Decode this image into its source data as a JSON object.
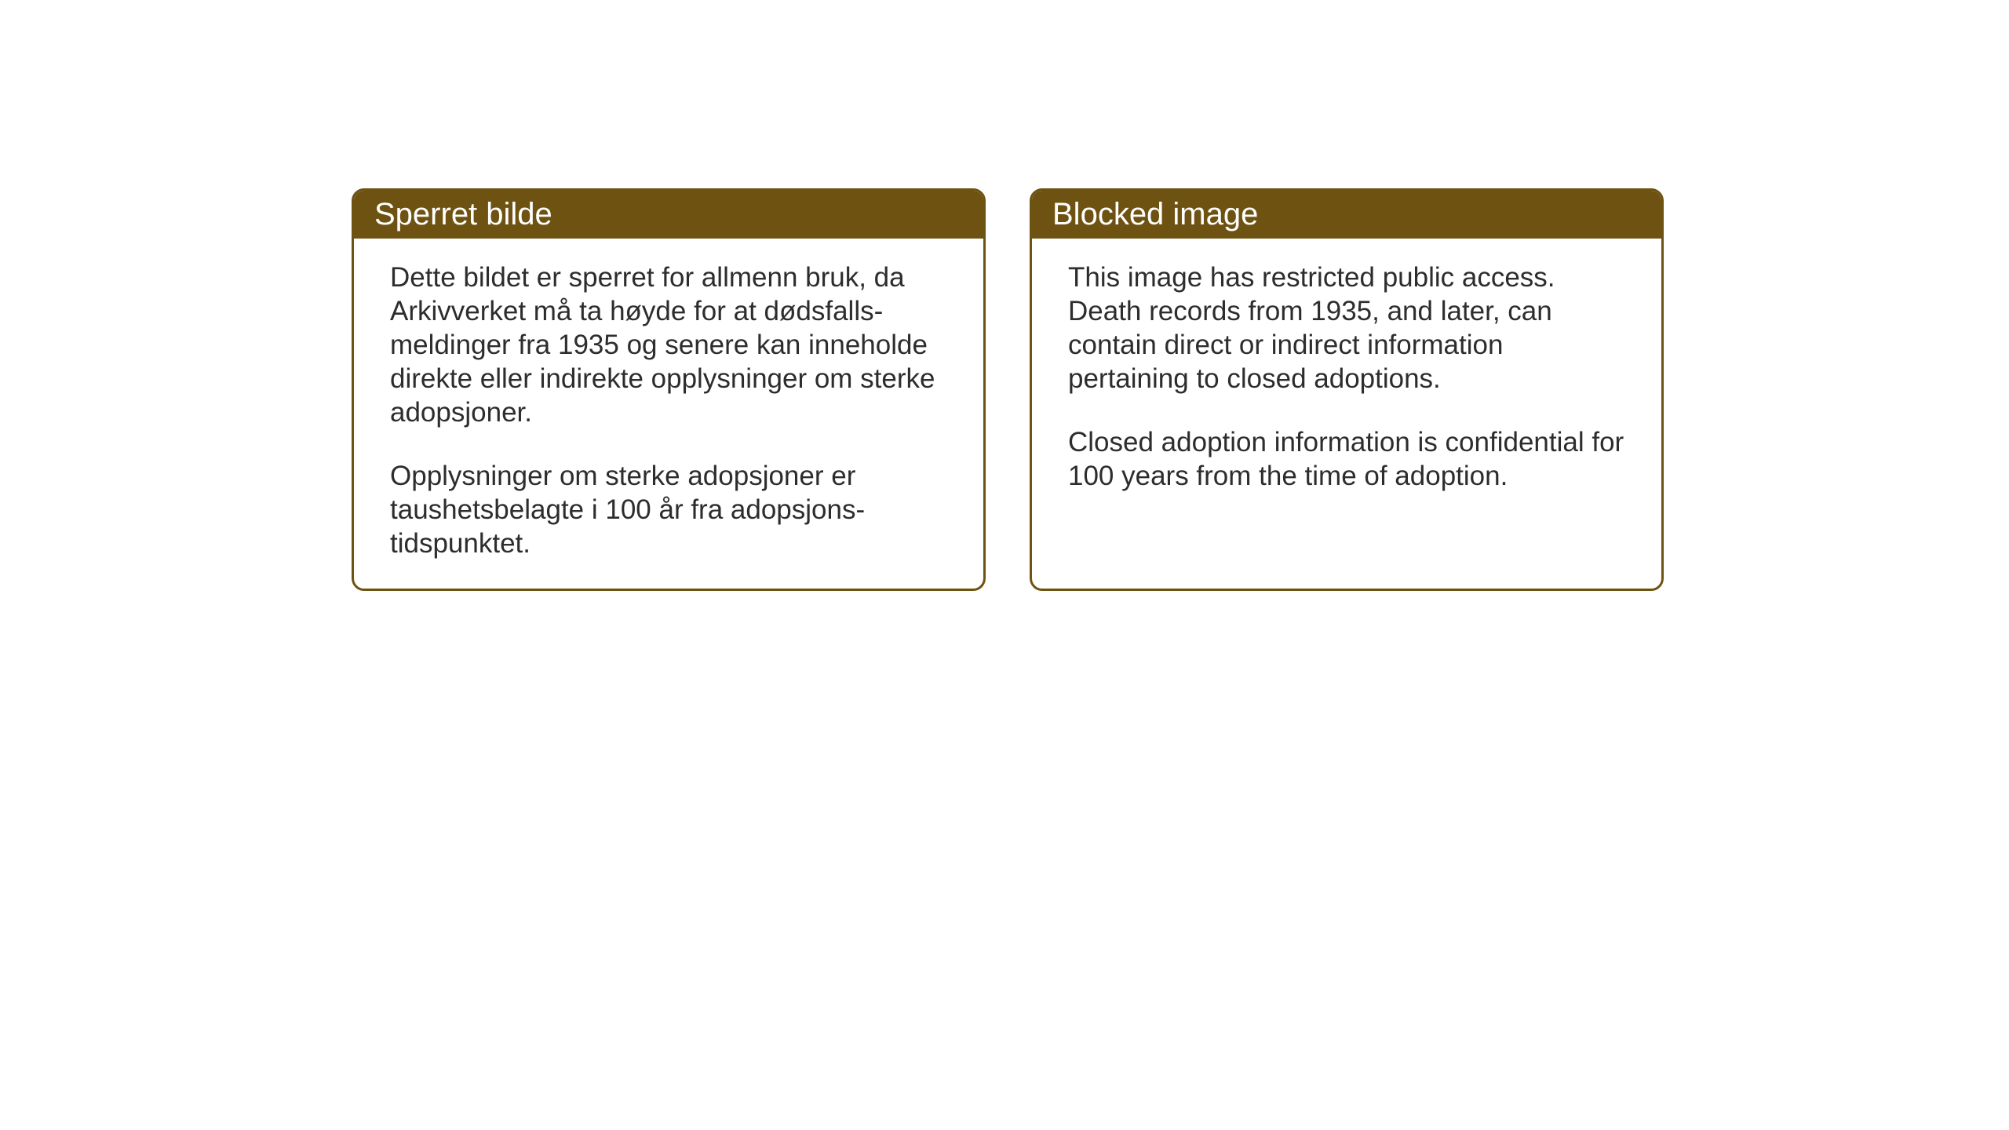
{
  "cards": [
    {
      "title": "Sperret bilde",
      "paragraph1": "Dette bildet er sperret for allmenn bruk, da Arkivverket må ta høyde for at dødsfalls-meldinger fra 1935 og senere kan inneholde direkte eller indirekte opplysninger om sterke adopsjoner.",
      "paragraph2": "Opplysninger om sterke adopsjoner er taushetsbelagte i 100 år fra adopsjons-tidspunktet."
    },
    {
      "title": "Blocked image",
      "paragraph1": "This image has restricted public access. Death records from 1935, and later, can contain direct or indirect information pertaining to closed adoptions.",
      "paragraph2": "Closed adoption information is confidential for 100 years from the time of adoption."
    }
  ],
  "styling": {
    "header_bg_color": "#6e5212",
    "header_text_color": "#ffffff",
    "border_color": "#6e5212",
    "body_text_color": "#2d2d2d",
    "card_bg_color": "#ffffff",
    "page_bg_color": "#ffffff",
    "header_fontsize": 40,
    "body_fontsize": 35,
    "border_width": 3,
    "border_radius": 16
  }
}
